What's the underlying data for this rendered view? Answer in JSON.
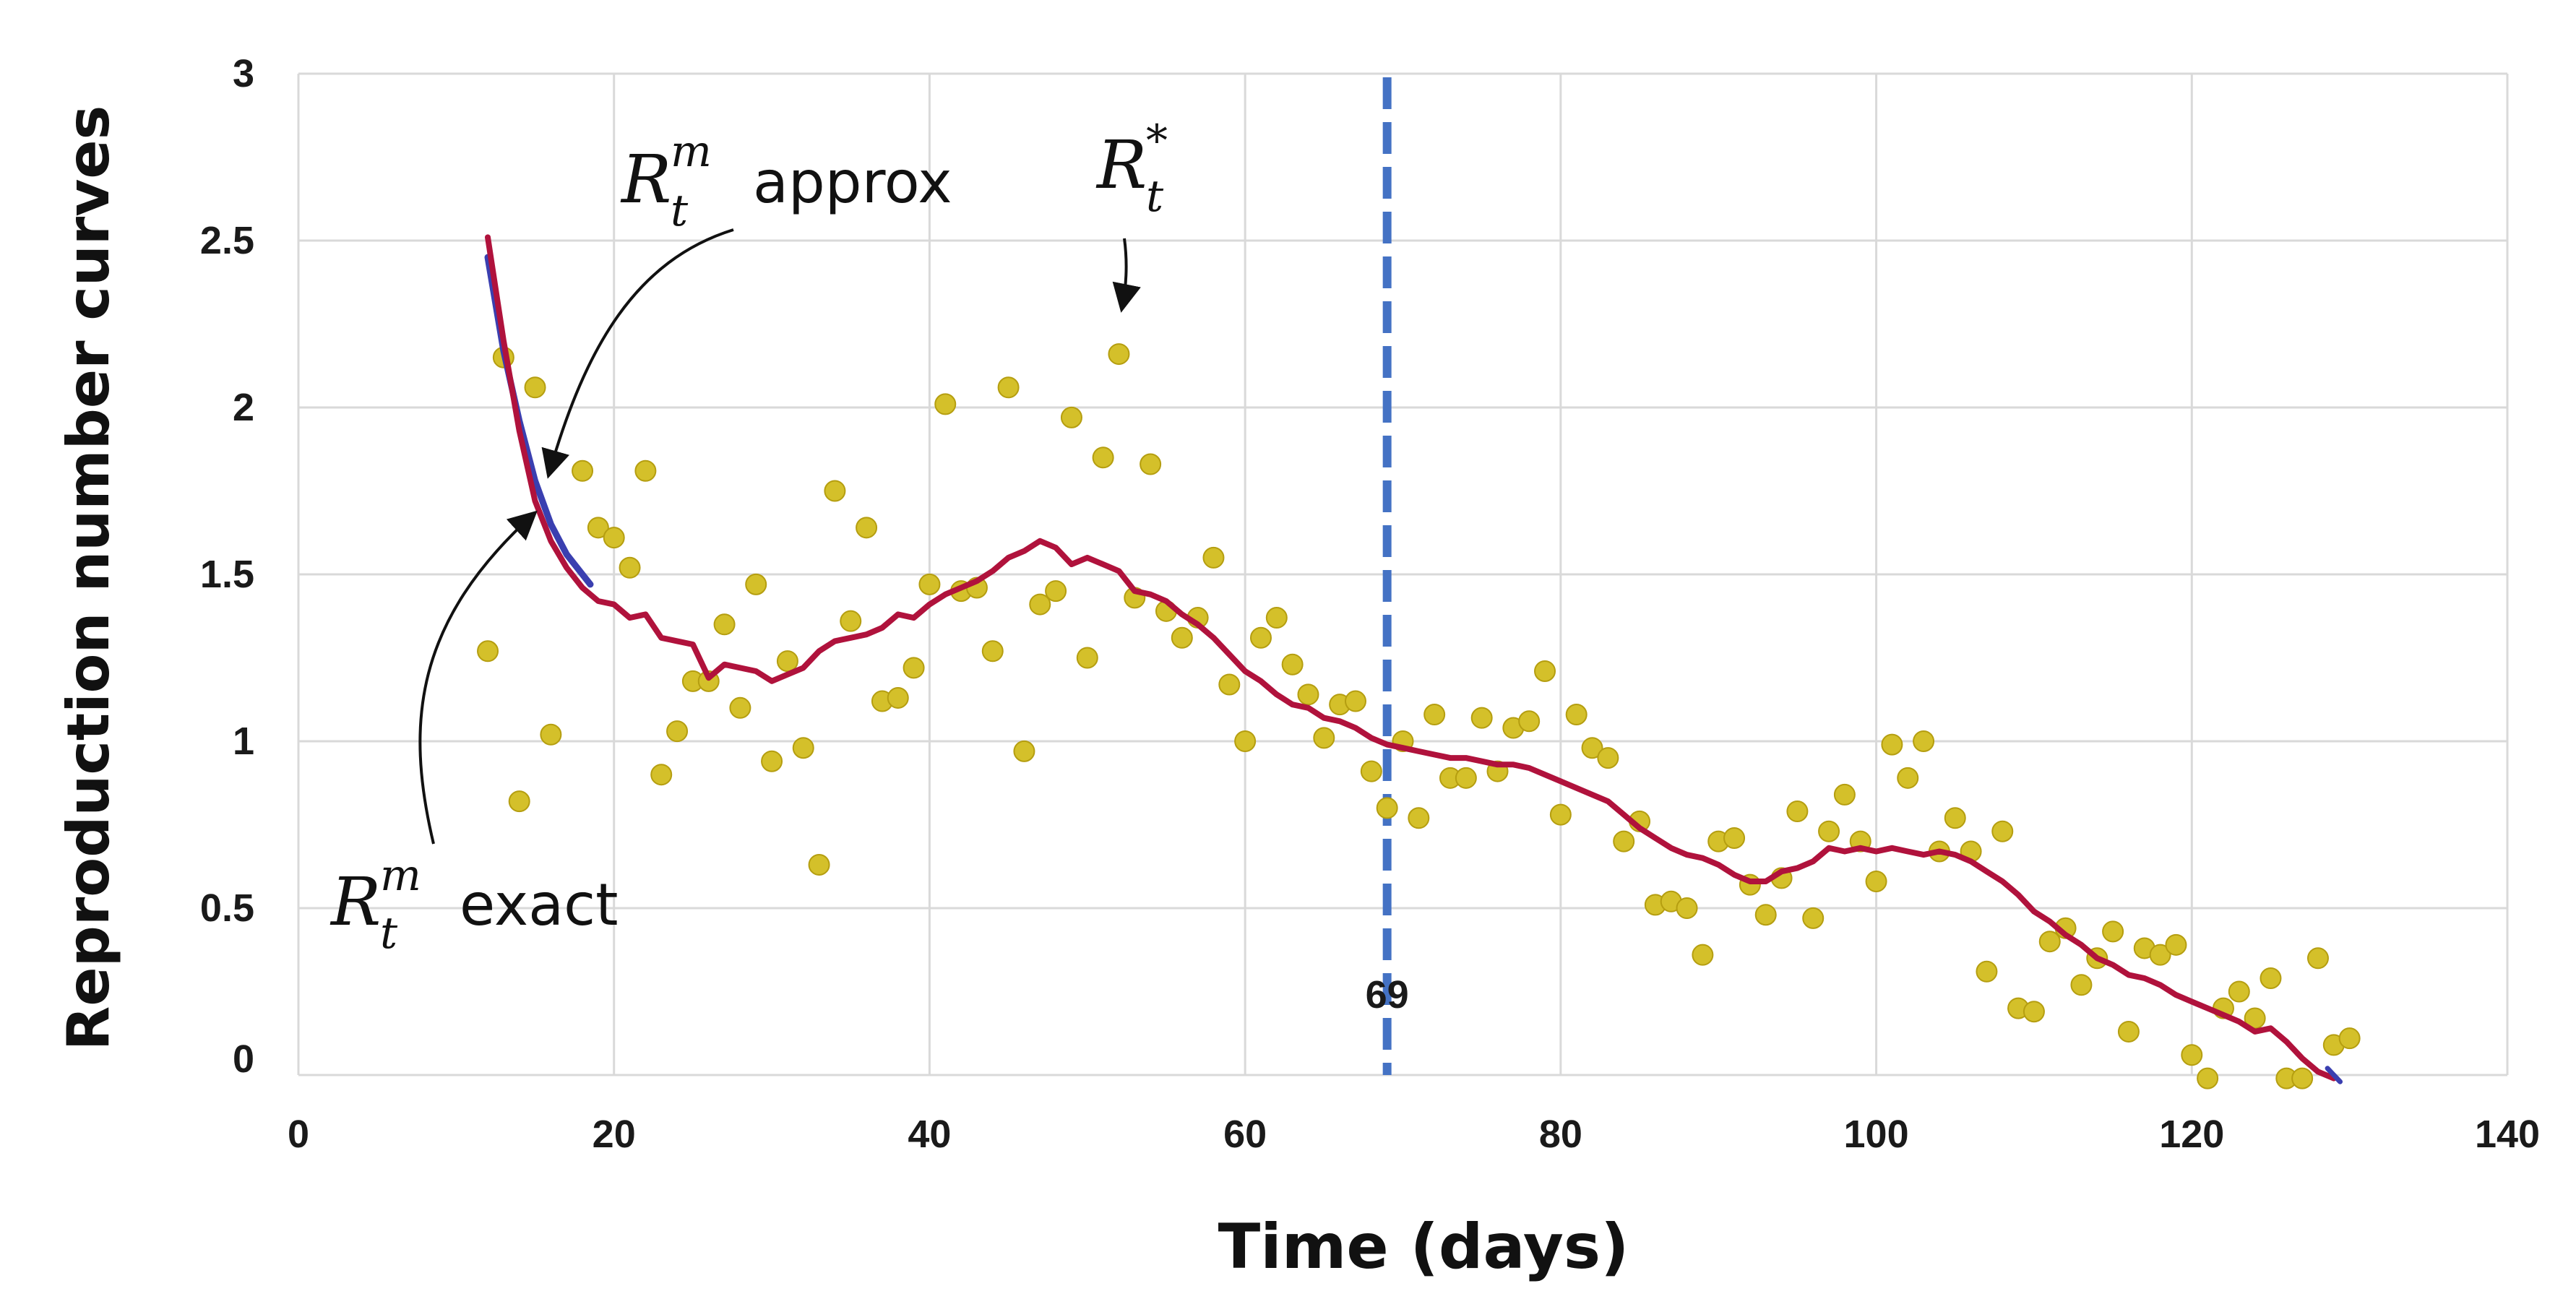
{
  "chart_data": {
    "type": "line",
    "xlabel": "Time (days)",
    "ylabel": "Reproduction number curves",
    "xlim": [
      0,
      140
    ],
    "ylim": [
      0,
      3
    ],
    "x_ticks": [
      0,
      20,
      40,
      60,
      80,
      100,
      120,
      140
    ],
    "y_ticks": [
      0,
      0.5,
      1,
      1.5,
      2,
      2.5,
      3
    ],
    "x_tick_labels": [
      "0",
      "20",
      "40",
      "60",
      "80",
      "100",
      "120",
      "140"
    ],
    "y_tick_labels": [
      "0",
      "0.5",
      "1",
      "1.5",
      "2",
      "2.5",
      "3"
    ],
    "grid": true,
    "colors": {
      "scatter": "#d4c02a",
      "scatter_edge": "#b59e10",
      "approx": "#3a3fb0",
      "exact": "#b0123c",
      "vline": "#4472c4",
      "grid": "#d9d9d9"
    },
    "series": [
      {
        "name": "R_t* (scatter)",
        "kind": "scatter",
        "points": [
          [
            12,
            1.27
          ],
          [
            13,
            2.15
          ],
          [
            14,
            0.82
          ],
          [
            15,
            2.06
          ],
          [
            16,
            1.02
          ],
          [
            18,
            1.81
          ],
          [
            19,
            1.64
          ],
          [
            20,
            1.61
          ],
          [
            21,
            1.52
          ],
          [
            22,
            1.81
          ],
          [
            23,
            0.9
          ],
          [
            24,
            1.03
          ],
          [
            25,
            1.18
          ],
          [
            26,
            1.18
          ],
          [
            27,
            1.35
          ],
          [
            28,
            1.1
          ],
          [
            29,
            1.47
          ],
          [
            30,
            0.94
          ],
          [
            31,
            1.24
          ],
          [
            32,
            0.98
          ],
          [
            33,
            0.63
          ],
          [
            34,
            1.75
          ],
          [
            35,
            1.36
          ],
          [
            36,
            1.64
          ],
          [
            37,
            1.12
          ],
          [
            38,
            1.13
          ],
          [
            39,
            1.22
          ],
          [
            40,
            1.47
          ],
          [
            41,
            2.01
          ],
          [
            42,
            1.45
          ],
          [
            43,
            1.46
          ],
          [
            44,
            1.27
          ],
          [
            45,
            2.06
          ],
          [
            46,
            0.97
          ],
          [
            47,
            1.41
          ],
          [
            48,
            1.45
          ],
          [
            49,
            1.97
          ],
          [
            50,
            1.25
          ],
          [
            51,
            1.85
          ],
          [
            52,
            2.16
          ],
          [
            53,
            1.43
          ],
          [
            54,
            1.83
          ],
          [
            55,
            1.39
          ],
          [
            56,
            1.31
          ],
          [
            57,
            1.37
          ],
          [
            58,
            1.55
          ],
          [
            59,
            1.17
          ],
          [
            60,
            1.0
          ],
          [
            61,
            1.31
          ],
          [
            62,
            1.37
          ],
          [
            63,
            1.23
          ],
          [
            64,
            1.14
          ],
          [
            65,
            1.01
          ],
          [
            66,
            1.11
          ],
          [
            67,
            1.12
          ],
          [
            68,
            0.91
          ],
          [
            69,
            0.8
          ],
          [
            70,
            1.0
          ],
          [
            71,
            0.77
          ],
          [
            72,
            1.08
          ],
          [
            73,
            0.89
          ],
          [
            74,
            0.89
          ],
          [
            75,
            1.07
          ],
          [
            76,
            0.91
          ],
          [
            77,
            1.04
          ],
          [
            78,
            1.06
          ],
          [
            79,
            1.21
          ],
          [
            80,
            0.78
          ],
          [
            81,
            1.08
          ],
          [
            82,
            0.98
          ],
          [
            83,
            0.95
          ],
          [
            84,
            0.7
          ],
          [
            85,
            0.76
          ],
          [
            86,
            0.51
          ],
          [
            87,
            0.52
          ],
          [
            88,
            0.5
          ],
          [
            89,
            0.36
          ],
          [
            90,
            0.7
          ],
          [
            91,
            0.71
          ],
          [
            92,
            0.57
          ],
          [
            93,
            0.48
          ],
          [
            94,
            0.59
          ],
          [
            95,
            0.79
          ],
          [
            96,
            0.47
          ],
          [
            97,
            0.73
          ],
          [
            98,
            0.84
          ],
          [
            99,
            0.7
          ],
          [
            100,
            0.58
          ],
          [
            101,
            0.99
          ],
          [
            102,
            0.89
          ],
          [
            103,
            1.0
          ],
          [
            104,
            0.67
          ],
          [
            105,
            0.77
          ],
          [
            106,
            0.67
          ],
          [
            107,
            0.31
          ],
          [
            108,
            0.73
          ],
          [
            109,
            0.2
          ],
          [
            110,
            0.19
          ],
          [
            111,
            0.4
          ],
          [
            112,
            0.44
          ],
          [
            113,
            0.27
          ],
          [
            114,
            0.35
          ],
          [
            115,
            0.43
          ],
          [
            116,
            0.13
          ],
          [
            117,
            0.38
          ],
          [
            118,
            0.36
          ],
          [
            119,
            0.39
          ],
          [
            120,
            0.06
          ],
          [
            121,
            -0.01
          ],
          [
            122,
            0.2
          ],
          [
            123,
            0.25
          ],
          [
            124,
            0.17
          ],
          [
            125,
            0.29
          ],
          [
            126,
            -0.01
          ],
          [
            127,
            -0.01
          ],
          [
            128,
            0.35
          ],
          [
            129,
            0.09
          ],
          [
            130,
            0.11
          ]
        ]
      },
      {
        "name": "R_t^m approx",
        "kind": "line",
        "points": [
          [
            12,
            2.45
          ],
          [
            13,
            2.17
          ],
          [
            14,
            1.96
          ],
          [
            15,
            1.78
          ],
          [
            16,
            1.65
          ],
          [
            17,
            1.56
          ],
          [
            18,
            1.5
          ],
          [
            18.5,
            1.47
          ]
        ]
      },
      {
        "name": "R_t^m exact",
        "kind": "line",
        "points": [
          [
            12,
            2.51
          ],
          [
            13,
            2.2
          ],
          [
            14,
            1.93
          ],
          [
            15,
            1.72
          ],
          [
            16,
            1.6
          ],
          [
            17,
            1.52
          ],
          [
            18,
            1.46
          ],
          [
            19,
            1.42
          ],
          [
            20,
            1.41
          ],
          [
            21,
            1.37
          ],
          [
            22,
            1.38
          ],
          [
            23,
            1.31
          ],
          [
            24,
            1.3
          ],
          [
            25,
            1.29
          ],
          [
            26,
            1.19
          ],
          [
            27,
            1.23
          ],
          [
            28,
            1.22
          ],
          [
            29,
            1.21
          ],
          [
            30,
            1.18
          ],
          [
            31,
            1.2
          ],
          [
            32,
            1.22
          ],
          [
            33,
            1.27
          ],
          [
            34,
            1.3
          ],
          [
            35,
            1.31
          ],
          [
            36,
            1.32
          ],
          [
            37,
            1.34
          ],
          [
            38,
            1.38
          ],
          [
            39,
            1.37
          ],
          [
            40,
            1.41
          ],
          [
            41,
            1.44
          ],
          [
            42,
            1.46
          ],
          [
            43,
            1.48
          ],
          [
            44,
            1.51
          ],
          [
            45,
            1.55
          ],
          [
            46,
            1.57
          ],
          [
            47,
            1.6
          ],
          [
            48,
            1.58
          ],
          [
            49,
            1.53
          ],
          [
            50,
            1.55
          ],
          [
            51,
            1.53
          ],
          [
            52,
            1.51
          ],
          [
            53,
            1.45
          ],
          [
            54,
            1.44
          ],
          [
            55,
            1.42
          ],
          [
            56,
            1.38
          ],
          [
            57,
            1.35
          ],
          [
            58,
            1.31
          ],
          [
            59,
            1.26
          ],
          [
            60,
            1.21
          ],
          [
            61,
            1.18
          ],
          [
            62,
            1.14
          ],
          [
            63,
            1.11
          ],
          [
            64,
            1.1
          ],
          [
            65,
            1.07
          ],
          [
            66,
            1.06
          ],
          [
            67,
            1.04
          ],
          [
            68,
            1.01
          ],
          [
            69,
            0.99
          ],
          [
            70,
            0.98
          ],
          [
            71,
            0.97
          ],
          [
            72,
            0.96
          ],
          [
            73,
            0.95
          ],
          [
            74,
            0.95
          ],
          [
            75,
            0.94
          ],
          [
            76,
            0.93
          ],
          [
            77,
            0.93
          ],
          [
            78,
            0.92
          ],
          [
            79,
            0.9
          ],
          [
            80,
            0.88
          ],
          [
            81,
            0.86
          ],
          [
            82,
            0.84
          ],
          [
            83,
            0.82
          ],
          [
            84,
            0.78
          ],
          [
            85,
            0.74
          ],
          [
            86,
            0.71
          ],
          [
            87,
            0.68
          ],
          [
            88,
            0.66
          ],
          [
            89,
            0.65
          ],
          [
            90,
            0.63
          ],
          [
            91,
            0.6
          ],
          [
            92,
            0.58
          ],
          [
            93,
            0.58
          ],
          [
            94,
            0.61
          ],
          [
            95,
            0.62
          ],
          [
            96,
            0.64
          ],
          [
            97,
            0.68
          ],
          [
            98,
            0.67
          ],
          [
            99,
            0.68
          ],
          [
            100,
            0.67
          ],
          [
            101,
            0.68
          ],
          [
            102,
            0.67
          ],
          [
            103,
            0.66
          ],
          [
            104,
            0.67
          ],
          [
            105,
            0.66
          ],
          [
            106,
            0.64
          ],
          [
            107,
            0.61
          ],
          [
            108,
            0.58
          ],
          [
            109,
            0.54
          ],
          [
            110,
            0.49
          ],
          [
            111,
            0.46
          ],
          [
            112,
            0.42
          ],
          [
            113,
            0.39
          ],
          [
            114,
            0.35
          ],
          [
            115,
            0.33
          ],
          [
            116,
            0.3
          ],
          [
            117,
            0.29
          ],
          [
            118,
            0.27
          ],
          [
            119,
            0.24
          ],
          [
            120,
            0.22
          ],
          [
            121,
            0.2
          ],
          [
            122,
            0.18
          ],
          [
            123,
            0.16
          ],
          [
            124,
            0.13
          ],
          [
            125,
            0.14
          ],
          [
            126,
            0.1
          ],
          [
            127,
            0.05
          ],
          [
            128,
            0.01
          ],
          [
            129,
            -0.01
          ]
        ]
      }
    ],
    "vertical_line": {
      "x": 69,
      "label": "69",
      "style": "dashed"
    },
    "annotations": {
      "star": {
        "math_main": "R",
        "math_sub": "t",
        "math_sup": "*"
      },
      "approx": {
        "math_main": "R",
        "math_sub": "t",
        "math_sup": "m",
        "text": "approx"
      },
      "exact": {
        "math_main": "R",
        "math_sub": "t",
        "math_sup": "m",
        "text": "exact"
      }
    }
  }
}
